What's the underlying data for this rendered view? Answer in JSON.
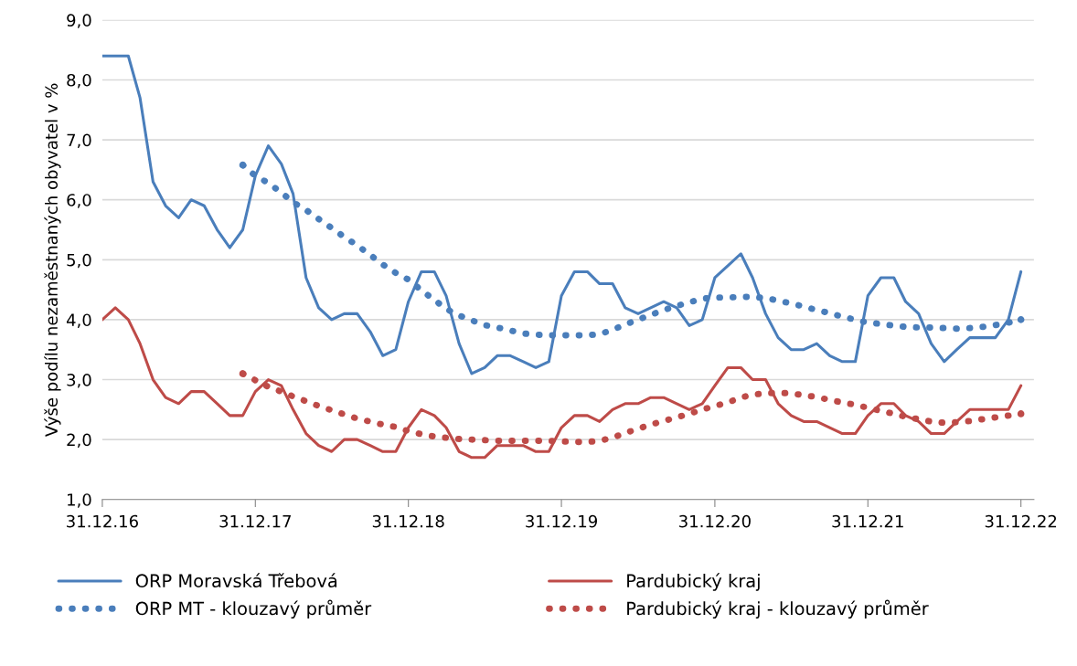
{
  "chart_data": {
    "type": "line",
    "ylabel": "Výše podílu nezaměstnaných obyvatel v %",
    "x": [
      "2016-12",
      "2017-01",
      "2017-02",
      "2017-03",
      "2017-04",
      "2017-05",
      "2017-06",
      "2017-07",
      "2017-08",
      "2017-09",
      "2017-10",
      "2017-11",
      "2017-12",
      "2018-01",
      "2018-02",
      "2018-03",
      "2018-04",
      "2018-05",
      "2018-06",
      "2018-07",
      "2018-08",
      "2018-09",
      "2018-10",
      "2018-11",
      "2018-12",
      "2019-01",
      "2019-02",
      "2019-03",
      "2019-04",
      "2019-05",
      "2019-06",
      "2019-07",
      "2019-08",
      "2019-09",
      "2019-10",
      "2019-11",
      "2019-12",
      "2020-01",
      "2020-02",
      "2020-03",
      "2020-04",
      "2020-05",
      "2020-06",
      "2020-07",
      "2020-08",
      "2020-09",
      "2020-10",
      "2020-11",
      "2020-12",
      "2021-01",
      "2021-02",
      "2021-03",
      "2021-04",
      "2021-05",
      "2021-06",
      "2021-07",
      "2021-08",
      "2021-09",
      "2021-10",
      "2021-11",
      "2021-12",
      "2022-01",
      "2022-02",
      "2022-03",
      "2022-04",
      "2022-05",
      "2022-06",
      "2022-07",
      "2022-08",
      "2022-09",
      "2022-10",
      "2022-11",
      "2022-12"
    ],
    "series": [
      {
        "name": "ORP Moravská Třebová",
        "color": "#4a7ebb",
        "line_style": "solid",
        "values": [
          8.4,
          8.4,
          8.4,
          7.7,
          6.3,
          5.9,
          5.7,
          6.0,
          5.9,
          5.5,
          5.2,
          5.5,
          6.4,
          6.9,
          6.6,
          6.1,
          4.7,
          4.2,
          4.0,
          4.1,
          4.1,
          3.8,
          3.4,
          3.5,
          4.3,
          4.8,
          4.8,
          4.4,
          3.6,
          3.1,
          3.2,
          3.4,
          3.4,
          3.3,
          3.2,
          3.3,
          4.4,
          4.8,
          4.8,
          4.6,
          4.6,
          4.2,
          4.1,
          4.2,
          4.3,
          4.2,
          3.9,
          4.0,
          4.7,
          4.9,
          5.1,
          4.7,
          4.1,
          3.7,
          3.5,
          3.5,
          3.6,
          3.4,
          3.3,
          3.3,
          4.4,
          4.7,
          4.7,
          4.3,
          4.1,
          3.6,
          3.3,
          3.5,
          3.7,
          3.7,
          3.7,
          4.0,
          4.8
        ]
      },
      {
        "name": "Pardubický kraj",
        "color": "#be4b48",
        "line_style": "solid",
        "values": [
          4.0,
          4.2,
          4.0,
          3.6,
          3.0,
          2.7,
          2.6,
          2.8,
          2.8,
          2.6,
          2.4,
          2.4,
          2.8,
          3.0,
          2.9,
          2.5,
          2.1,
          1.9,
          1.8,
          2.0,
          2.0,
          1.9,
          1.8,
          1.8,
          2.2,
          2.5,
          2.4,
          2.2,
          1.8,
          1.7,
          1.7,
          1.9,
          1.9,
          1.9,
          1.8,
          1.8,
          2.2,
          2.4,
          2.4,
          2.3,
          2.5,
          2.6,
          2.6,
          2.7,
          2.7,
          2.6,
          2.5,
          2.6,
          2.9,
          3.2,
          3.2,
          3.0,
          3.0,
          2.6,
          2.4,
          2.3,
          2.3,
          2.2,
          2.1,
          2.1,
          2.4,
          2.6,
          2.6,
          2.4,
          2.3,
          2.1,
          2.1,
          2.3,
          2.5,
          2.5,
          2.5,
          2.5,
          2.9
        ]
      },
      {
        "name": "ORP MT - klouzavý průměr",
        "color": "#4a7ebb",
        "line_style": "dotted",
        "values": [
          null,
          null,
          null,
          null,
          null,
          null,
          null,
          null,
          null,
          null,
          null,
          6.58,
          6.4,
          6.28,
          6.12,
          5.96,
          5.83,
          5.68,
          5.53,
          5.38,
          5.24,
          5.08,
          4.92,
          4.78,
          4.67,
          4.49,
          4.33,
          4.18,
          4.07,
          3.99,
          3.91,
          3.87,
          3.82,
          3.77,
          3.75,
          3.74,
          3.74,
          3.74,
          3.74,
          3.76,
          3.83,
          3.92,
          4.0,
          4.08,
          4.16,
          4.23,
          4.29,
          4.35,
          4.37,
          4.37,
          4.38,
          4.38,
          4.36,
          4.32,
          4.27,
          4.22,
          4.16,
          4.11,
          4.05,
          4.0,
          3.95,
          3.93,
          3.9,
          3.88,
          3.87,
          3.87,
          3.86,
          3.85,
          3.86,
          3.88,
          3.91,
          3.95,
          4.0
        ]
      },
      {
        "name": "Pardubický kraj - klouzavý průměr",
        "color": "#be4b48",
        "line_style": "dotted",
        "values": [
          null,
          null,
          null,
          null,
          null,
          null,
          null,
          null,
          null,
          null,
          null,
          3.1,
          2.99,
          2.88,
          2.8,
          2.72,
          2.64,
          2.56,
          2.49,
          2.42,
          2.35,
          2.3,
          2.25,
          2.21,
          2.14,
          2.09,
          2.05,
          2.03,
          2.01,
          2.0,
          1.99,
          1.98,
          1.98,
          1.98,
          1.98,
          1.98,
          1.97,
          1.96,
          1.96,
          1.98,
          2.03,
          2.11,
          2.18,
          2.25,
          2.31,
          2.37,
          2.43,
          2.5,
          2.56,
          2.62,
          2.7,
          2.75,
          2.77,
          2.78,
          2.77,
          2.74,
          2.71,
          2.66,
          2.62,
          2.58,
          2.53,
          2.48,
          2.43,
          2.38,
          2.34,
          2.3,
          2.28,
          2.29,
          2.31,
          2.34,
          2.37,
          2.4,
          2.43
        ]
      }
    ],
    "xlim": [
      "2016-12",
      "2023-01"
    ],
    "xticks": [
      {
        "value": "2016-12",
        "label": "31.12.16"
      },
      {
        "value": "2017-12",
        "label": "31.12.17"
      },
      {
        "value": "2018-12",
        "label": "31.12.18"
      },
      {
        "value": "2019-12",
        "label": "31.12.19"
      },
      {
        "value": "2020-12",
        "label": "31.12.20"
      },
      {
        "value": "2021-12",
        "label": "31.12.21"
      },
      {
        "value": "2022-12",
        "label": "31.12.22"
      }
    ],
    "ylim": [
      1,
      9
    ],
    "yticks": [
      {
        "value": 1,
        "label": "1,0"
      },
      {
        "value": 2,
        "label": "2,0"
      },
      {
        "value": 3,
        "label": "3,0"
      },
      {
        "value": 4,
        "label": "4,0"
      },
      {
        "value": 5,
        "label": "5,0"
      },
      {
        "value": 6,
        "label": "6,0"
      },
      {
        "value": 7,
        "label": "7,0"
      },
      {
        "value": 8,
        "label": "8,0"
      },
      {
        "value": 9,
        "label": "9,0"
      }
    ],
    "grid": "y",
    "legend": "bottom"
  }
}
